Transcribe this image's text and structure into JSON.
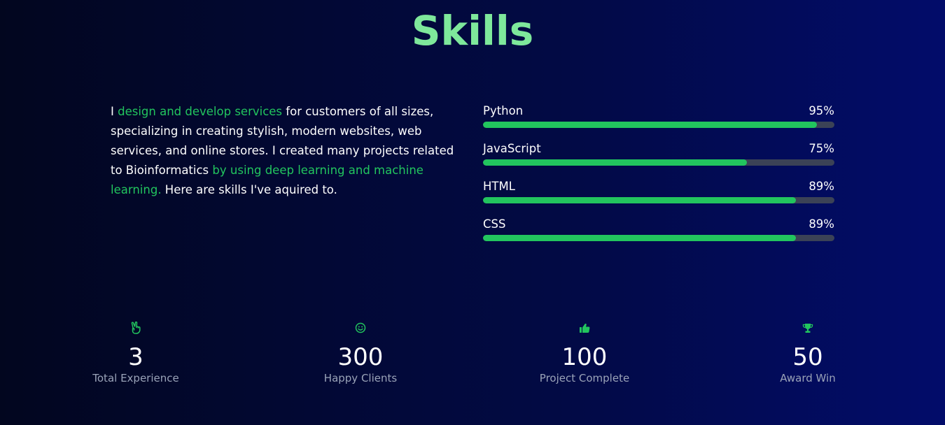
{
  "heading": "Skills",
  "intro": {
    "part1": "I ",
    "highlight1": "design and develop services",
    "part2": " for customers of all sizes, specializing in creating stylish, modern websites, web services, and online stores. I created many projects related to Bioinformatics ",
    "highlight2": "by using deep learning and machine learning.",
    "part3": " Here are skills I've aquired to."
  },
  "skills": [
    {
      "name": "Python",
      "percent_label": "95%",
      "value": 95
    },
    {
      "name": "JavaScript",
      "percent_label": "75%",
      "value": 75
    },
    {
      "name": "HTML",
      "percent_label": "89%",
      "value": 89
    },
    {
      "name": "CSS",
      "percent_label": "89%",
      "value": 89
    }
  ],
  "stats": [
    {
      "icon": "peace-hand-icon",
      "number": "3",
      "label": "Total Experience"
    },
    {
      "icon": "smile-icon",
      "number": "300",
      "label": "Happy Clients"
    },
    {
      "icon": "thumbs-up-icon",
      "number": "100",
      "label": "Project Complete"
    },
    {
      "icon": "trophy-icon",
      "number": "50",
      "label": "Award Win"
    }
  ],
  "colors": {
    "accent": "#22c55e",
    "heading": "#7ee89b",
    "track": "#3b4256",
    "muted_text": "#9aa3b8"
  }
}
